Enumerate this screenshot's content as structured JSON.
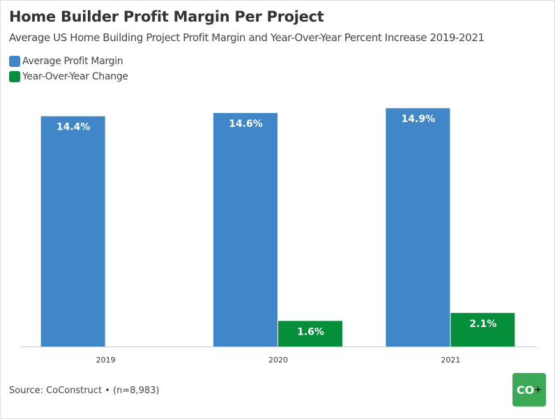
{
  "chart_data": {
    "type": "bar",
    "title": "Home Builder Profit Margin Per Project",
    "subtitle": "Average US Home Building Project Profit Margin and Year-Over-Year Percent Increase 2019-2021",
    "categories": [
      "2019",
      "2020",
      "2021"
    ],
    "series": [
      {
        "name": "Average Profit Margin",
        "values": [
          14.4,
          14.6,
          14.9
        ],
        "labels": [
          "14.4%",
          "14.6%",
          "14.9%"
        ],
        "color": "#3f87c8"
      },
      {
        "name": "Year-Over-Year Change",
        "values": [
          null,
          1.6,
          2.1
        ],
        "labels": [
          "",
          "1.6%",
          "2.1%"
        ],
        "color": "#058f3a"
      }
    ],
    "xlabel": "",
    "ylabel": "",
    "ylim": [
      0,
      16
    ],
    "grid": false,
    "legend": "top-left"
  },
  "source": "Source: CoConstruct • (n=8,983)",
  "logo": {
    "text": "CO",
    "plus": "+",
    "color": "#3aaa55"
  }
}
